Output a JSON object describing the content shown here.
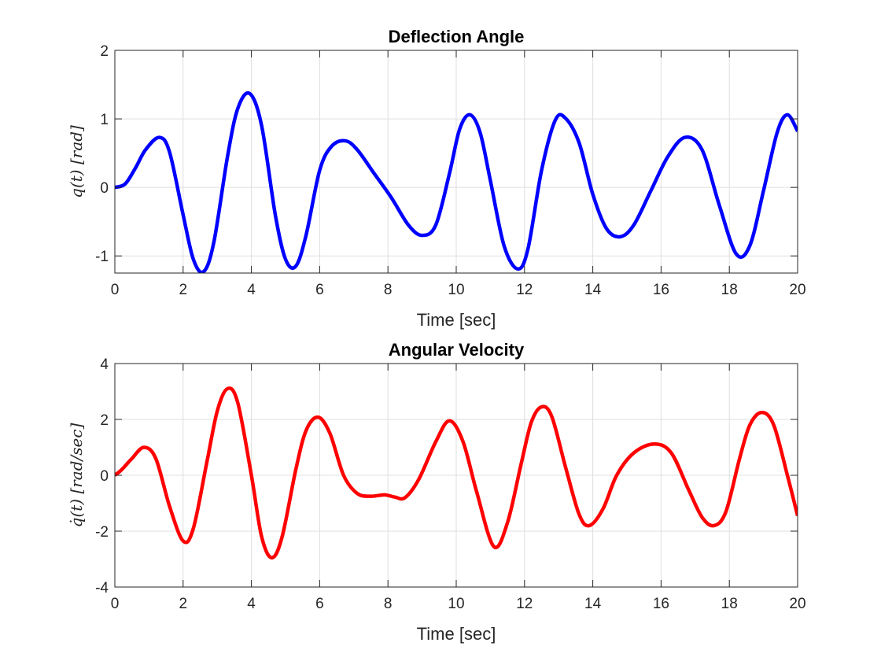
{
  "chart_data": [
    {
      "type": "line",
      "title": "Deflection Angle",
      "xlabel": "Time [sec]",
      "ylabel": "q(t)  [rad]",
      "xlim": [
        0,
        20
      ],
      "ylim": [
        -1.25,
        2
      ],
      "xticks": [
        0,
        2,
        4,
        6,
        8,
        10,
        12,
        14,
        16,
        18,
        20
      ],
      "yticks": [
        -1,
        0,
        1,
        2
      ],
      "xtick_labels": [
        "0",
        "2",
        "4",
        "6",
        "8",
        "10",
        "12",
        "14",
        "16",
        "18",
        "20"
      ],
      "ytick_labels": [
        "-1",
        "0",
        "1",
        "2"
      ],
      "grid": true,
      "series": [
        {
          "color": "#0000ff",
          "x": [
            0,
            0.3,
            0.6,
            0.9,
            1.3,
            1.6,
            2.0,
            2.3,
            2.6,
            2.9,
            3.3,
            3.6,
            3.95,
            4.3,
            4.7,
            5.0,
            5.3,
            5.6,
            6.0,
            6.35,
            6.75,
            7.1,
            7.6,
            8.1,
            8.6,
            9.0,
            9.4,
            9.8,
            10.1,
            10.4,
            10.7,
            11.0,
            11.4,
            11.8,
            12.1,
            12.5,
            12.9,
            13.2,
            13.6,
            14.0,
            14.4,
            14.8,
            15.2,
            15.7,
            16.2,
            16.7,
            17.2,
            17.7,
            18.2,
            18.6,
            19.0,
            19.4,
            19.7,
            20.0
          ],
          "y": [
            0,
            0.05,
            0.28,
            0.55,
            0.73,
            0.52,
            -0.4,
            -1.05,
            -1.23,
            -0.8,
            0.45,
            1.15,
            1.37,
            0.9,
            -0.4,
            -1.05,
            -1.15,
            -0.7,
            0.25,
            0.6,
            0.68,
            0.55,
            0.2,
            -0.15,
            -0.55,
            -0.7,
            -0.55,
            0.2,
            0.85,
            1.06,
            0.8,
            0.1,
            -0.85,
            -1.19,
            -0.9,
            0.25,
            0.98,
            1.01,
            0.65,
            -0.1,
            -0.6,
            -0.72,
            -0.55,
            -0.05,
            0.45,
            0.73,
            0.55,
            -0.25,
            -0.97,
            -0.85,
            -0.05,
            0.8,
            1.06,
            0.82
          ]
        }
      ]
    },
    {
      "type": "line",
      "title": "Angular Velocity",
      "xlabel": "Time [sec]",
      "ylabel": "q̇(t)  [rad/sec]",
      "xlim": [
        0,
        20
      ],
      "ylim": [
        -4,
        4
      ],
      "xticks": [
        0,
        2,
        4,
        6,
        8,
        10,
        12,
        14,
        16,
        18,
        20
      ],
      "yticks": [
        -4,
        -2,
        0,
        2,
        4
      ],
      "xtick_labels": [
        "0",
        "2",
        "4",
        "6",
        "8",
        "10",
        "12",
        "14",
        "16",
        "18",
        "20"
      ],
      "ytick_labels": [
        "-4",
        "-2",
        "0",
        "2",
        "4"
      ],
      "grid": true,
      "series": [
        {
          "color": "#ff0000",
          "x": [
            0,
            0.2,
            0.5,
            0.85,
            1.2,
            1.6,
            2.0,
            2.3,
            2.7,
            3.0,
            3.3,
            3.6,
            4.0,
            4.3,
            4.6,
            4.9,
            5.3,
            5.6,
            5.95,
            6.3,
            6.7,
            7.1,
            7.5,
            7.9,
            8.2,
            8.5,
            8.9,
            9.4,
            9.8,
            10.2,
            10.6,
            11.1,
            11.5,
            11.9,
            12.2,
            12.5,
            12.8,
            13.2,
            13.6,
            13.9,
            14.3,
            14.7,
            15.2,
            15.8,
            16.3,
            16.8,
            17.2,
            17.55,
            17.9,
            18.3,
            18.6,
            18.95,
            19.3,
            19.7,
            20.0
          ],
          "y": [
            0,
            0.2,
            0.6,
            1.0,
            0.6,
            -1.1,
            -2.35,
            -1.9,
            0.5,
            2.3,
            3.1,
            2.6,
            0.0,
            -2.2,
            -2.95,
            -2.2,
            0.2,
            1.6,
            2.08,
            1.5,
            0.0,
            -0.65,
            -0.75,
            -0.7,
            -0.78,
            -0.8,
            -0.15,
            1.2,
            1.95,
            1.2,
            -0.6,
            -2.55,
            -1.7,
            0.4,
            1.9,
            2.45,
            2.1,
            0.3,
            -1.4,
            -1.8,
            -1.2,
            0.0,
            0.8,
            1.12,
            0.8,
            -0.5,
            -1.5,
            -1.8,
            -1.3,
            0.6,
            1.8,
            2.25,
            1.8,
            0.0,
            -1.45
          ]
        }
      ]
    }
  ]
}
